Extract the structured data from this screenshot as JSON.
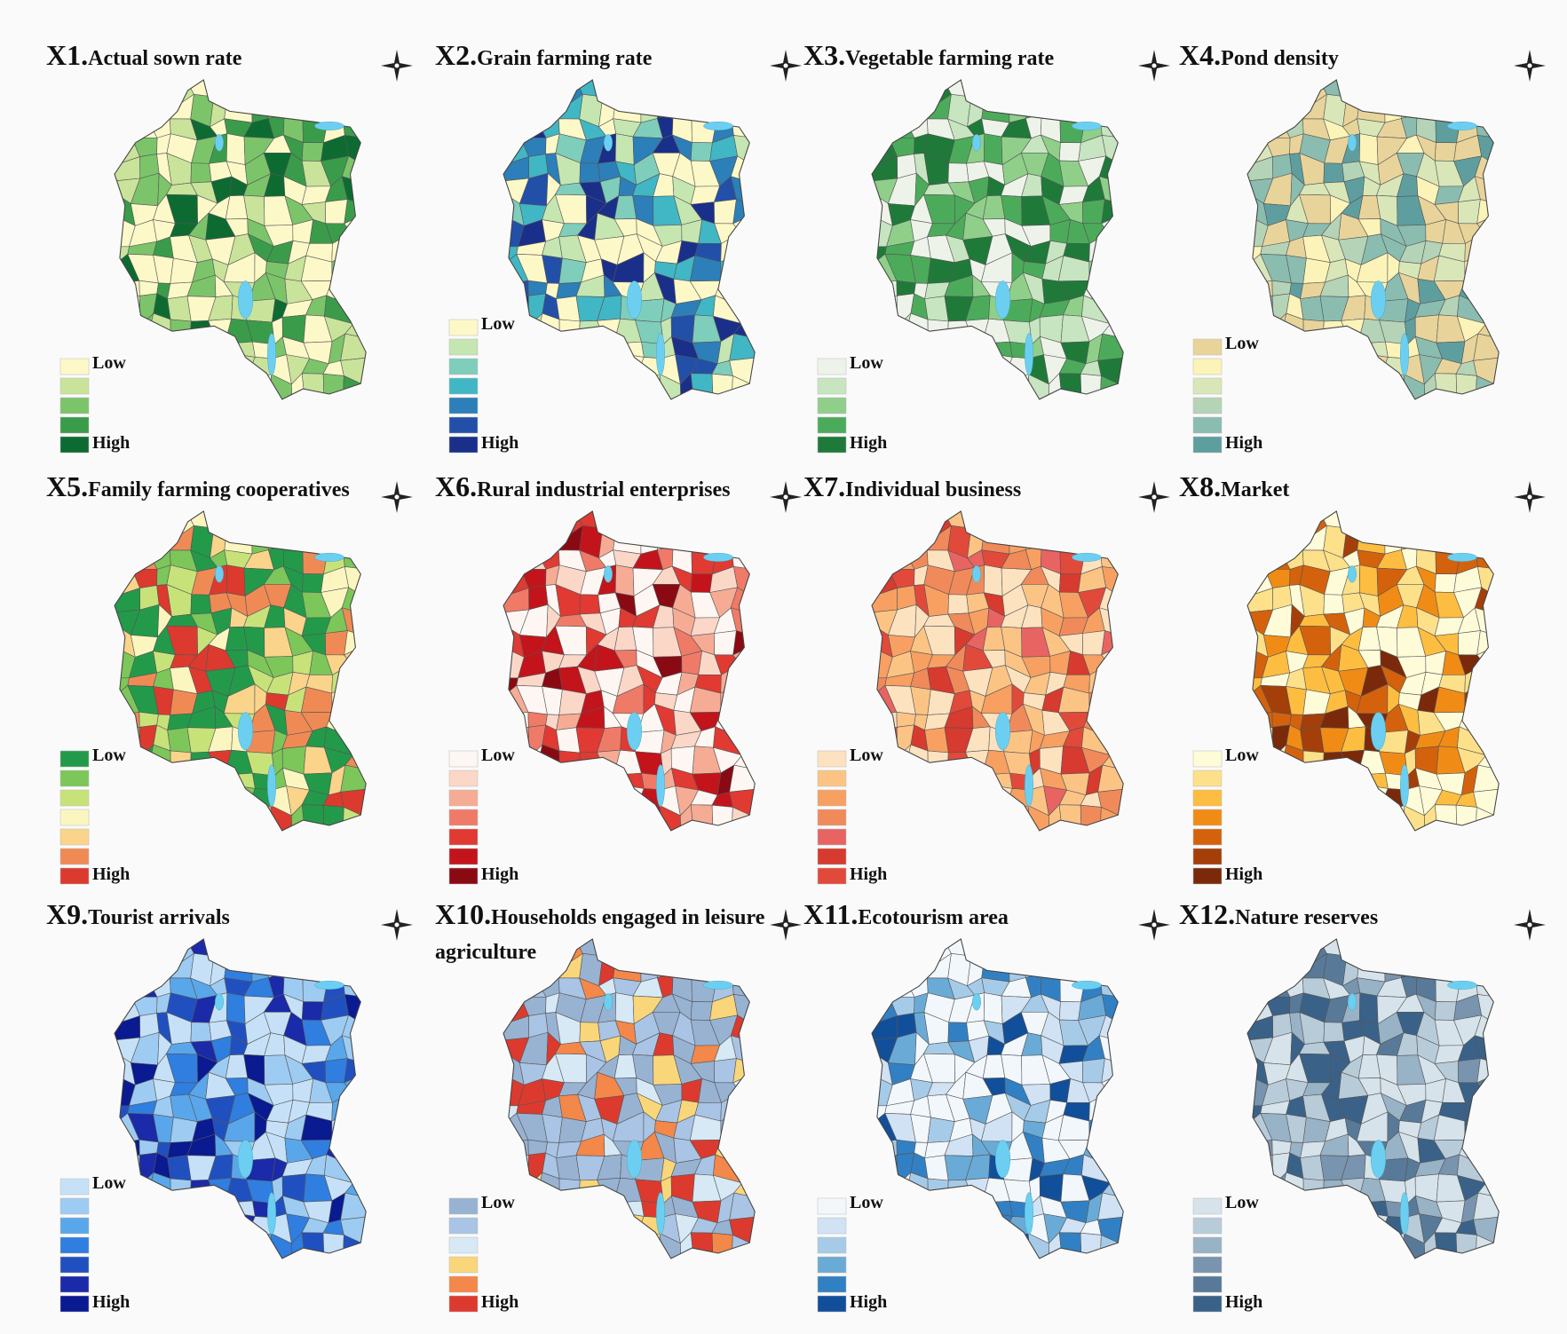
{
  "panels": [
    {
      "id": "X1.",
      "title": "Actual sown rate",
      "legend": {
        "low": "Low",
        "high": "High",
        "colors": [
          "#fdf8c8",
          "#c9e39a",
          "#7cc46a",
          "#3a9c4a",
          "#0d6b32"
        ]
      }
    },
    {
      "id": "X2.",
      "title": "Grain farming rate",
      "legend": {
        "low": "Low",
        "high": "High",
        "colors": [
          "#fdf8c8",
          "#c5e6b0",
          "#7fcdbb",
          "#41b6c4",
          "#2c7fb8",
          "#2250a8",
          "#1a2f8a"
        ]
      }
    },
    {
      "id": "X3.",
      "title": "Vegetable farming rate",
      "legend": {
        "low": "Low",
        "high": "High",
        "colors": [
          "#eef3ea",
          "#c7e5c0",
          "#8fcf8a",
          "#4cab5a",
          "#1f7a3a"
        ]
      }
    },
    {
      "id": "X4.",
      "title": "Pond density",
      "legend": {
        "low": "Low",
        "high": "High",
        "colors": [
          "#e8d49a",
          "#fbf3b8",
          "#d9e6b8",
          "#b5d3b6",
          "#8bbcb0",
          "#5e9e9f"
        ]
      }
    },
    {
      "id": "X5.",
      "title": "Family farming cooperatives",
      "legend": {
        "low": "Low",
        "high": "High",
        "colors": [
          "#239a4a",
          "#7cc65a",
          "#c8e27a",
          "#fbf6c0",
          "#f9d48a",
          "#f08a55",
          "#dc3a2e"
        ]
      }
    },
    {
      "id": "X6.",
      "title": "Rural industrial enterprises",
      "legend": {
        "low": "Low",
        "high": "High",
        "colors": [
          "#fdf6f2",
          "#fbd7c8",
          "#f6ab95",
          "#f07a68",
          "#e03a32",
          "#c3141c",
          "#8a0a14"
        ]
      }
    },
    {
      "id": "X7.",
      "title": "Individual business",
      "legend": {
        "low": "Low",
        "high": "High",
        "colors": [
          "#fde2c0",
          "#fbc485",
          "#f7a062",
          "#f08a5a",
          "#e86462",
          "#d73a2e",
          "#e14a3a"
        ]
      }
    },
    {
      "id": "X8.",
      "title": "Market",
      "legend": {
        "low": "Low",
        "high": "High",
        "colors": [
          "#fefbd8",
          "#fde08a",
          "#fdbd40",
          "#f08c15",
          "#d4620d",
          "#a43f0a",
          "#7a2a0a"
        ]
      }
    },
    {
      "id": "X9.",
      "title": "Tourist arrivals",
      "legend": {
        "low": "Low",
        "high": "High",
        "colors": [
          "#c6e1f7",
          "#9ecbf2",
          "#5aa6ea",
          "#2f7ee0",
          "#2050c0",
          "#1a2aa8",
          "#0a1a90"
        ]
      }
    },
    {
      "id": "X10.",
      "title": "Households engaged in leisure agriculture",
      "legend": {
        "low": "Low",
        "high": "High",
        "colors": [
          "#98b2d2",
          "#a9c4e4",
          "#d6e9f5",
          "#fad67a",
          "#f4874a",
          "#dc3a2e"
        ]
      }
    },
    {
      "id": "X11.",
      "title": "Ecotourism area",
      "legend": {
        "low": "Low",
        "high": "High",
        "colors": [
          "#f2f7fc",
          "#d0e2f3",
          "#a6cbe8",
          "#6aaad6",
          "#3280c4",
          "#124f9a"
        ]
      }
    },
    {
      "id": "X12.",
      "title": "Nature reserves",
      "legend": {
        "low": "Low",
        "high": "High",
        "colors": [
          "#d6e3ea",
          "#b8cbd8",
          "#98b2c6",
          "#7894ae",
          "#587a98",
          "#3a6288"
        ]
      }
    }
  ]
}
